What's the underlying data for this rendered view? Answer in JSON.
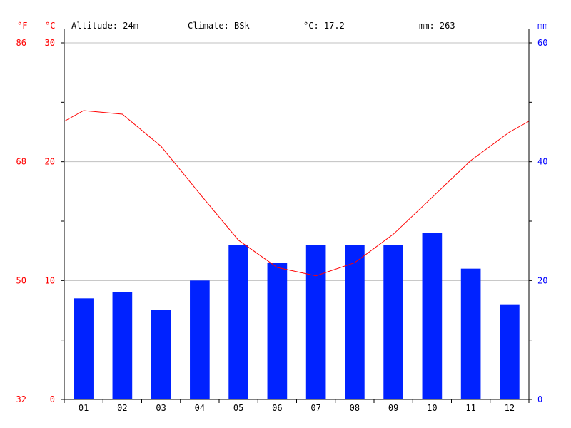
{
  "header": {
    "altitude": "Altitude: 24m",
    "climate": "Climate: BSk",
    "temperature": "°C: 17.2",
    "precipitation": "mm: 263"
  },
  "chart_data": {
    "type": "bar",
    "units": {
      "fahrenheit": "°F",
      "celsius": "°C",
      "millimeter": "mm"
    },
    "categories": [
      "01",
      "02",
      "03",
      "04",
      "05",
      "06",
      "07",
      "08",
      "09",
      "10",
      "11",
      "12"
    ],
    "series": [
      {
        "type": "bar",
        "axis": "right",
        "values": [
          17,
          18,
          15,
          20,
          26,
          23,
          26,
          26,
          26,
          28,
          22,
          16
        ],
        "color": "#0022ff"
      },
      {
        "type": "line",
        "axis": "left",
        "values": [
          24.3,
          24.0,
          21.3,
          17.3,
          13.4,
          11.1,
          10.4,
          11.5,
          13.9,
          17.0,
          20.1,
          22.5
        ],
        "color": "#ff0000"
      }
    ],
    "line_edge_values": [
      23.4,
      23.4
    ],
    "y_left": {
      "range": [
        0,
        30
      ],
      "ticks": [
        "0",
        "10",
        "20",
        "30"
      ],
      "fahrenheit_ticks": [
        "32",
        "50",
        "68",
        "86"
      ]
    },
    "y_right": {
      "range": [
        0,
        60
      ],
      "ticks": [
        "0",
        "20",
        "40",
        "60"
      ]
    },
    "grid": true
  }
}
